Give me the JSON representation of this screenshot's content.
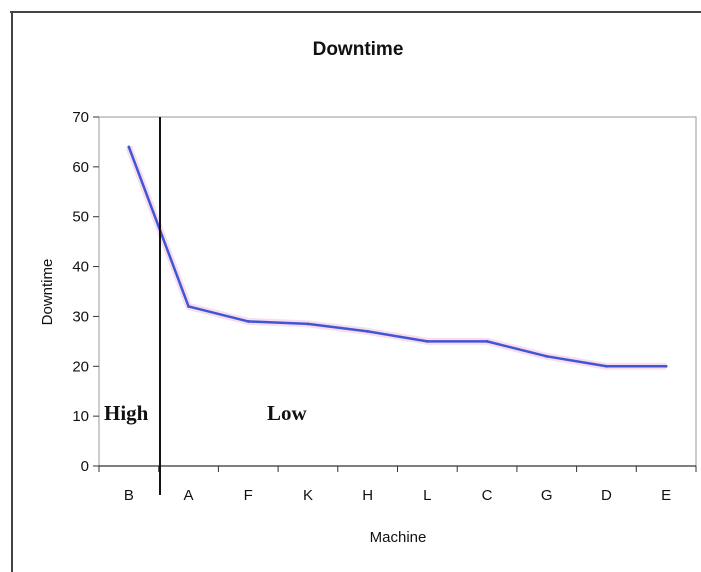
{
  "chart_data": {
    "type": "line",
    "title": "Downtime",
    "xlabel": "Machine",
    "ylabel": "Downtime",
    "categories": [
      "B",
      "A",
      "F",
      "K",
      "H",
      "L",
      "C",
      "G",
      "D",
      "E"
    ],
    "series": [
      {
        "values": [
          64,
          32,
          29,
          28.5,
          27,
          25,
          25,
          22,
          20,
          20
        ],
        "color": "#3f56d6"
      }
    ],
    "ylim": [
      0,
      70
    ],
    "yticks": [
      0,
      10,
      20,
      30,
      40,
      50,
      60,
      70
    ],
    "grid": false,
    "legend": "none",
    "annotations": {
      "high_label": "High",
      "low_label": "Low"
    }
  }
}
